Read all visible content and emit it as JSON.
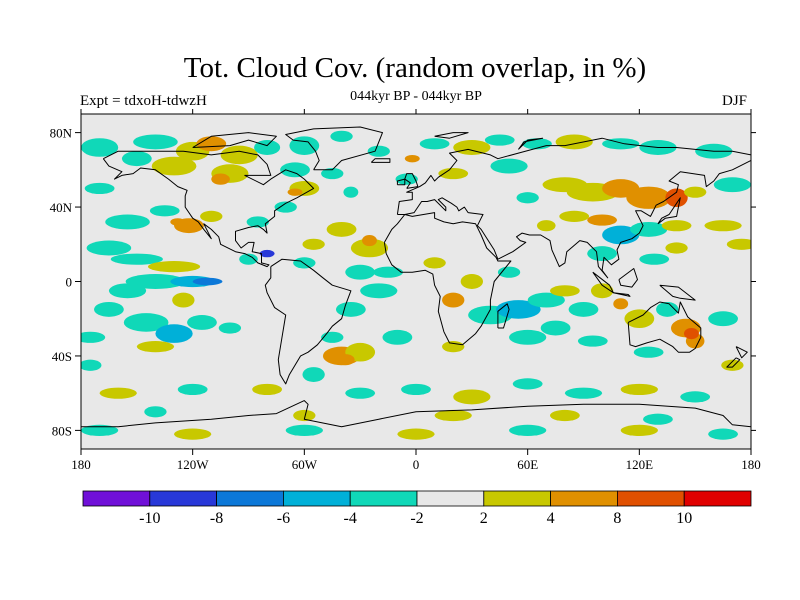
{
  "title": "Tot. Cloud Cov. (random overlap, in %)",
  "expt_label": "Expt = tdxoH-tdwzH",
  "subtitle": "044kyr BP - 044kyr BP",
  "season": "DJF",
  "map": {
    "type": "filled-contour-map",
    "projection": "cylindrical-equidistant",
    "lon_range": [
      -180,
      180
    ],
    "lat_range": [
      -90,
      90
    ],
    "background_color": "#e8e8e8",
    "coastline_color": "#000000",
    "x_ticks": [
      {
        "lon": -180,
        "label": "180"
      },
      {
        "lon": -120,
        "label": "120W"
      },
      {
        "lon": -60,
        "label": "60W"
      },
      {
        "lon": 0,
        "label": "0"
      },
      {
        "lon": 60,
        "label": "60E"
      },
      {
        "lon": 120,
        "label": "120E"
      },
      {
        "lon": 180,
        "label": "180"
      }
    ],
    "y_ticks": [
      {
        "lat": 80,
        "label": "80N"
      },
      {
        "lat": 40,
        "label": "40N"
      },
      {
        "lat": 0,
        "label": "0"
      },
      {
        "lat": -40,
        "label": "40S"
      },
      {
        "lat": -80,
        "label": "80S"
      }
    ]
  },
  "colorbar": {
    "colors": [
      "#7010d8",
      "#2838d8",
      "#0c78d8",
      "#00b0d8",
      "#10d8b8",
      "#e8e8e8",
      "#c8c800",
      "#e09000",
      "#e05000",
      "#e00000"
    ],
    "labels": [
      "-10",
      "-8",
      "-6",
      "-4",
      "-2",
      "2",
      "4",
      "8",
      "10"
    ]
  }
}
